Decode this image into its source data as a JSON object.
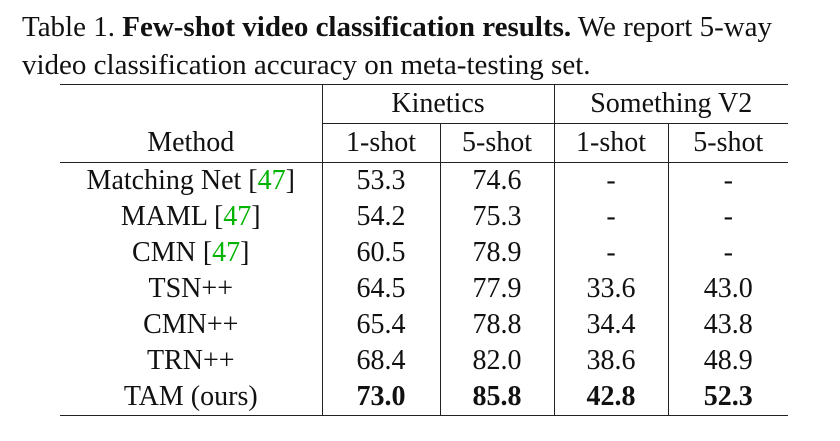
{
  "caption": {
    "label": "Table 1.",
    "title": "Few-shot video classification results.",
    "text": "We report 5-way video classification accuracy on meta-testing set."
  },
  "table": {
    "group_headers": [
      "Kinetics",
      "Something V2"
    ],
    "column_headers": [
      "Method",
      "1-shot",
      "5-shot",
      "1-shot",
      "5-shot"
    ],
    "rows": [
      {
        "method": "Matching Net",
        "cite": "47",
        "values": [
          "53.3",
          "74.6",
          "-",
          "-"
        ]
      },
      {
        "method": "MAML",
        "cite": "47",
        "values": [
          "54.2",
          "75.3",
          "-",
          "-"
        ]
      },
      {
        "method": "CMN",
        "cite": "47",
        "values": [
          "60.5",
          "78.9",
          "-",
          "-"
        ]
      },
      {
        "method": "TSN++",
        "cite": "",
        "values": [
          "64.5",
          "77.9",
          "33.6",
          "43.0"
        ]
      },
      {
        "method": "CMN++",
        "cite": "",
        "values": [
          "65.4",
          "78.8",
          "34.4",
          "43.8"
        ]
      },
      {
        "method": "TRN++",
        "cite": "",
        "values": [
          "68.4",
          "82.0",
          "38.6",
          "48.9"
        ]
      },
      {
        "method": "TAM (ours)",
        "cite": "",
        "values": [
          "73.0",
          "85.8",
          "42.8",
          "52.3"
        ],
        "bold": true
      }
    ]
  },
  "colors": {
    "citation": "#00b400",
    "text": "#111111"
  }
}
